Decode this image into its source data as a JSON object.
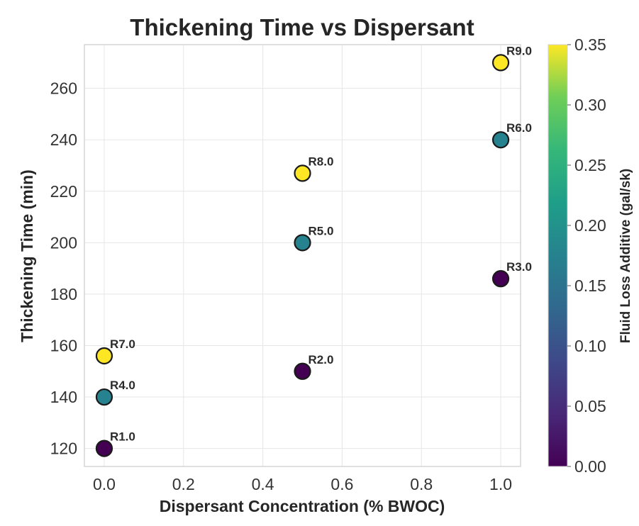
{
  "chart_data": {
    "type": "scatter",
    "title": "Thickening Time vs Dispersant",
    "xlabel": "Dispersant Concentration (% BWOC)",
    "ylabel": "Thickening Time (min)",
    "colorbar_label": "Fluid Loss Additive (gal/sk)",
    "colormap": "viridis",
    "xlim": [
      -0.05,
      1.05
    ],
    "ylim": [
      113,
      277
    ],
    "clim": [
      0.0,
      0.35
    ],
    "x_ticks": [
      "0.0",
      "0.2",
      "0.4",
      "0.6",
      "0.8",
      "1.0"
    ],
    "y_ticks": [
      "120",
      "140",
      "160",
      "180",
      "200",
      "220",
      "240",
      "260"
    ],
    "c_ticks": [
      "0.00",
      "0.05",
      "0.10",
      "0.15",
      "0.20",
      "0.25",
      "0.30",
      "0.35"
    ],
    "grid": true,
    "points": [
      {
        "label": "R1.0",
        "x": 0.0,
        "y": 120,
        "c": 0.0
      },
      {
        "label": "R2.0",
        "x": 0.5,
        "y": 150,
        "c": 0.0
      },
      {
        "label": "R3.0",
        "x": 1.0,
        "y": 186,
        "c": 0.0
      },
      {
        "label": "R4.0",
        "x": 0.0,
        "y": 140,
        "c": 0.175
      },
      {
        "label": "R5.0",
        "x": 0.5,
        "y": 200,
        "c": 0.175
      },
      {
        "label": "R6.0",
        "x": 1.0,
        "y": 240,
        "c": 0.175
      },
      {
        "label": "R7.0",
        "x": 0.0,
        "y": 156,
        "c": 0.35
      },
      {
        "label": "R8.0",
        "x": 0.5,
        "y": 227,
        "c": 0.35
      },
      {
        "label": "R9.0",
        "x": 1.0,
        "y": 270,
        "c": 0.35
      }
    ]
  }
}
